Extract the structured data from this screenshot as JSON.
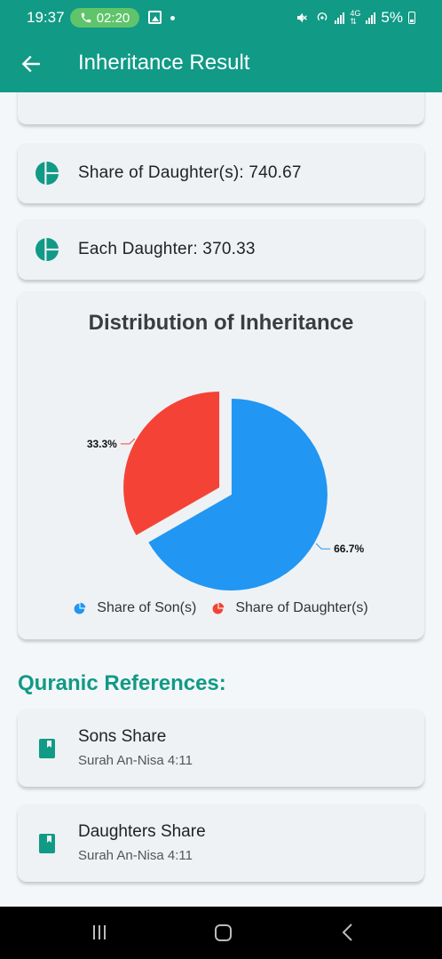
{
  "status_bar": {
    "time": "19:37",
    "call_duration": "02:20",
    "battery": "5%"
  },
  "app_bar": {
    "title": "Inheritance Result",
    "back_icon": "arrow-left-icon"
  },
  "result_cards": [
    {
      "icon": "pie-chart-icon",
      "text": "Share of Daughter(s): 740.67"
    },
    {
      "icon": "pie-chart-icon",
      "text": "Each Daughter: 370.33"
    }
  ],
  "chart_card": {
    "title": "Distribution of Inheritance"
  },
  "chart_data": {
    "type": "pie",
    "title": "Distribution of Inheritance",
    "slices": [
      {
        "label": "Share of Son(s)",
        "value": 66.7,
        "display": "66.7%",
        "color": "#2196f3"
      },
      {
        "label": "Share of Daughter(s)",
        "value": 33.3,
        "display": "33.3%",
        "color": "#f44336"
      }
    ],
    "legend_placement": "bottom"
  },
  "references": {
    "title": "Quranic References:",
    "items": [
      {
        "icon": "book-icon",
        "title": "Sons Share",
        "subtitle": "Surah An-Nisa 4:11"
      },
      {
        "icon": "book-icon",
        "title": "Daughters Share",
        "subtitle": "Surah An-Nisa 4:11"
      }
    ]
  },
  "colors": {
    "primary": "#119a86",
    "son": "#2196f3",
    "daughter": "#f44336"
  }
}
